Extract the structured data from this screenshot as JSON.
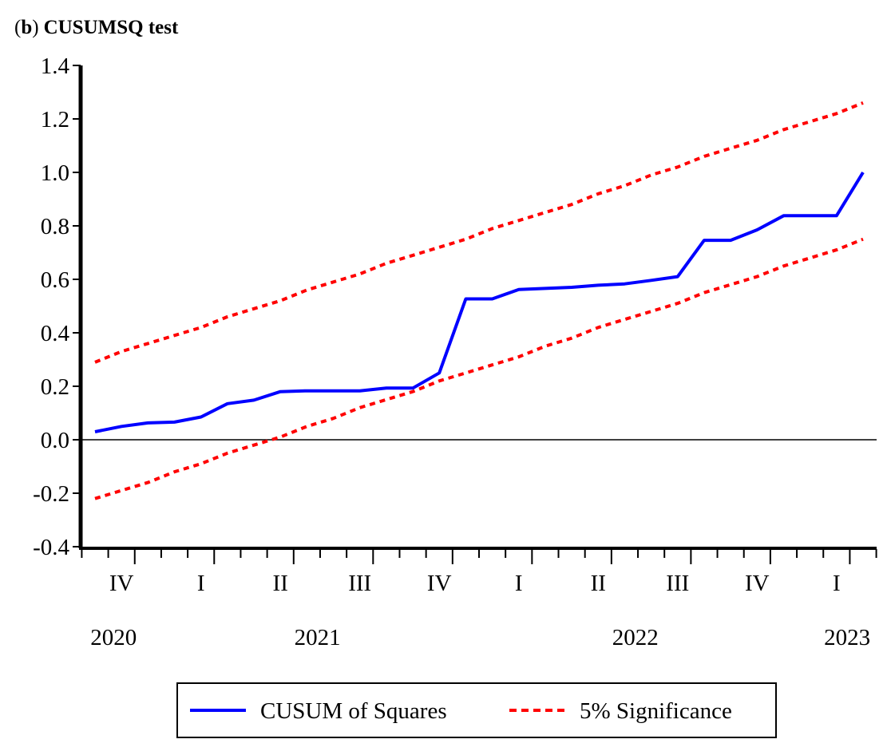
{
  "chart_data": {
    "type": "line",
    "title_prefix": "(",
    "title_letter": "b",
    "title_suffix": ")",
    "title_text": "CUSUMSQ test",
    "ylim": [
      -0.4,
      1.4
    ],
    "yticks": [
      {
        "value": 1.4,
        "label": "1.4"
      },
      {
        "value": 1.2,
        "label": "1.2"
      },
      {
        "value": 1.0,
        "label": "1.0"
      },
      {
        "value": 0.8,
        "label": "0.8"
      },
      {
        "value": 0.6,
        "label": "0.6"
      },
      {
        "value": 0.4,
        "label": "0.4"
      },
      {
        "value": 0.2,
        "label": "0.2"
      },
      {
        "value": 0.0,
        "label": "0.0"
      },
      {
        "value": -0.2,
        "label": "-0.2"
      },
      {
        "value": -0.4,
        "label": "-0.4"
      }
    ],
    "n_periods": 30,
    "quarter_labels": [
      {
        "label": "IV",
        "period": 1.5
      },
      {
        "label": "I",
        "period": 4.5
      },
      {
        "label": "II",
        "period": 7.5
      },
      {
        "label": "III",
        "period": 10.5
      },
      {
        "label": "IV",
        "period": 13.5
      },
      {
        "label": "I",
        "period": 16.5
      },
      {
        "label": "II",
        "period": 19.5
      },
      {
        "label": "III",
        "period": 22.5
      },
      {
        "label": "IV",
        "period": 25.5
      },
      {
        "label": "I",
        "period": 28.5
      }
    ],
    "year_labels": [
      {
        "label": "2020",
        "period": 1.2
      },
      {
        "label": "2021",
        "period": 8.9
      },
      {
        "label": "2022",
        "period": 20.9
      },
      {
        "label": "2023",
        "period": 28.9
      }
    ],
    "zero_line": 0,
    "series": [
      {
        "name": "CUSUM of Squares",
        "color": "#0000ff",
        "style": "solid",
        "values": [
          0.03,
          0.05,
          0.063,
          0.066,
          0.085,
          0.135,
          0.148,
          0.18,
          0.183,
          0.183,
          0.183,
          0.193,
          0.193,
          0.25,
          0.527,
          0.527,
          0.562,
          0.566,
          0.57,
          0.578,
          0.583,
          0.596,
          0.61,
          0.746,
          0.746,
          0.785,
          0.838,
          0.838,
          0.838,
          1.0
        ]
      },
      {
        "name": "5% Significance (upper)",
        "color": "#ff0000",
        "style": "dashed",
        "values": [
          0.29,
          0.33,
          0.36,
          0.39,
          0.42,
          0.46,
          0.49,
          0.52,
          0.56,
          0.59,
          0.62,
          0.66,
          0.69,
          0.72,
          0.75,
          0.79,
          0.82,
          0.85,
          0.88,
          0.92,
          0.95,
          0.99,
          1.02,
          1.06,
          1.09,
          1.12,
          1.16,
          1.19,
          1.22,
          1.26
        ]
      },
      {
        "name": "5% Significance (lower)",
        "color": "#ff0000",
        "style": "dashed",
        "values": [
          -0.22,
          -0.19,
          -0.16,
          -0.12,
          -0.09,
          -0.05,
          -0.02,
          0.01,
          0.05,
          0.08,
          0.12,
          0.15,
          0.18,
          0.22,
          0.25,
          0.28,
          0.31,
          0.35,
          0.38,
          0.42,
          0.45,
          0.48,
          0.51,
          0.55,
          0.58,
          0.61,
          0.65,
          0.68,
          0.71,
          0.75
        ]
      }
    ],
    "legend": {
      "placement": "bottom-center",
      "items": [
        {
          "label": "CUSUM of Squares",
          "color": "#0000ff",
          "style": "solid"
        },
        {
          "label": "5% Significance",
          "color": "#ff0000",
          "style": "dashed"
        }
      ]
    }
  }
}
